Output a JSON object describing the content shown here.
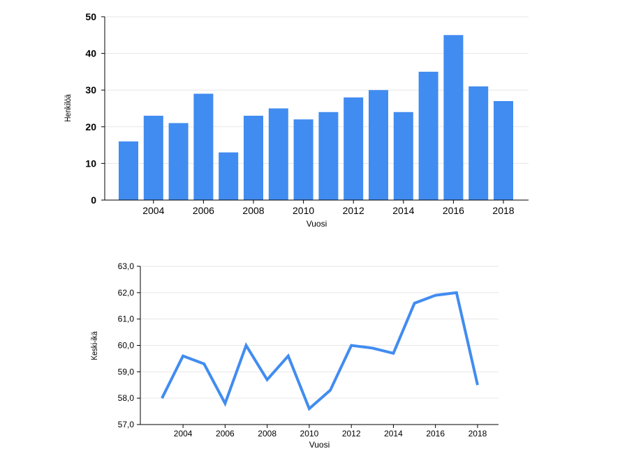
{
  "chart_data": [
    {
      "type": "bar",
      "x": [
        2003,
        2004,
        2005,
        2006,
        2007,
        2008,
        2009,
        2010,
        2011,
        2012,
        2013,
        2014,
        2015,
        2016,
        2017,
        2018
      ],
      "values": [
        16,
        23,
        21,
        29,
        13,
        23,
        25,
        22,
        24,
        28,
        30,
        24,
        35,
        45,
        31,
        27
      ],
      "xlabel": "Vuosi",
      "ylabel": "Henkilöä",
      "ylim": [
        0,
        50
      ],
      "yticks": [
        0,
        10,
        20,
        30,
        40,
        50
      ],
      "xticks": [
        2004,
        2006,
        2008,
        2010,
        2012,
        2014,
        2016,
        2018
      ],
      "color": "#418cf0",
      "grid": true
    },
    {
      "type": "line",
      "x": [
        2003,
        2004,
        2005,
        2006,
        2007,
        2008,
        2009,
        2010,
        2011,
        2012,
        2013,
        2014,
        2015,
        2016,
        2017,
        2018
      ],
      "values": [
        58.0,
        59.6,
        59.3,
        57.8,
        60.0,
        58.7,
        59.6,
        57.6,
        58.3,
        60.0,
        59.9,
        59.7,
        61.6,
        61.9,
        62.0,
        58.5
      ],
      "xlabel": "Vuosi",
      "ylabel": "Keski-ikä",
      "ylim": [
        57.0,
        63.0
      ],
      "yticks": [
        "57,0",
        "58,0",
        "59,0",
        "60,0",
        "61,0",
        "62,0",
        "63,0"
      ],
      "xticks": [
        2004,
        2006,
        2008,
        2010,
        2012,
        2014,
        2016,
        2018
      ],
      "color": "#418cf0",
      "grid": true
    }
  ]
}
